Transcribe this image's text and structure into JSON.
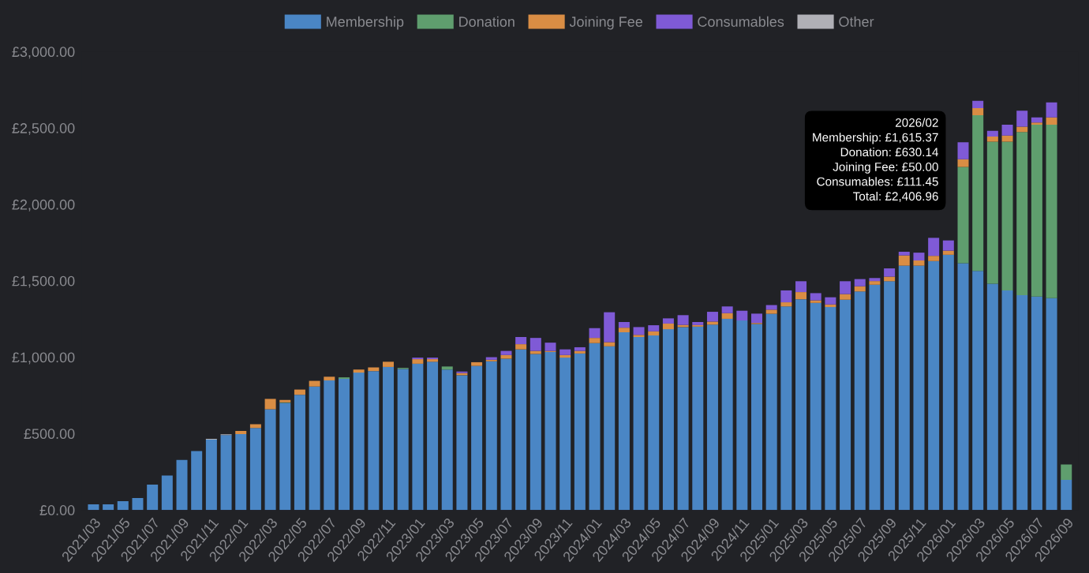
{
  "chart_data": {
    "type": "bar",
    "stacked": true,
    "categories": [
      "2021/03",
      null,
      "2021/05",
      null,
      "2021/07",
      null,
      "2021/09",
      null,
      "2021/11",
      null,
      "2022/01",
      null,
      "2022/03",
      null,
      "2022/05",
      null,
      "2022/07",
      null,
      "2022/09",
      null,
      "2022/11",
      null,
      "2023/01",
      null,
      "2023/03",
      null,
      "2023/05",
      null,
      "2023/07",
      null,
      "2023/09",
      null,
      "2023/11",
      null,
      "2024/01",
      null,
      "2024/03",
      null,
      "2024/05",
      null,
      "2024/07",
      null,
      "2024/09",
      null,
      "2024/11",
      null,
      "2025/01",
      null,
      "2025/03",
      null,
      "2025/05",
      null,
      "2025/07",
      null,
      "2025/09",
      null,
      "2025/11",
      null,
      "2026/01",
      null,
      "2026/03",
      null,
      "2026/05",
      null,
      "2026/07",
      null,
      "2026/09"
    ],
    "series": [
      {
        "name": "Membership",
        "color": "#4a86c5",
        "values": [
          37,
          37,
          57,
          78,
          166,
          226,
          328,
          385,
          460,
          490,
          497,
          537,
          659,
          700,
          754,
          808,
          848,
          858,
          899,
          909,
          936,
          923,
          957,
          970,
          919,
          882,
          943,
          973,
          990,
          1051,
          1021,
          1034,
          997,
          1024,
          1092,
          1071,
          1163,
          1132,
          1142,
          1183,
          1197,
          1200,
          1213,
          1251,
          1240,
          1217,
          1284,
          1332,
          1379,
          1355,
          1328,
          1376,
          1430,
          1474,
          1497,
          1599,
          1599,
          1629,
          1670,
          1615.37,
          1565,
          1480,
          1437,
          1406,
          1396,
          1386,
          197
        ]
      },
      {
        "name": "Donation",
        "color": "#5f9e6e",
        "values": [
          0,
          0,
          0,
          0,
          0,
          0,
          0,
          0,
          0,
          0,
          0,
          0,
          0,
          5,
          0,
          0,
          0,
          10,
          0,
          0,
          0,
          7,
          0,
          0,
          20,
          0,
          0,
          0,
          0,
          0,
          0,
          0,
          0,
          0,
          0,
          0,
          0,
          0,
          0,
          0,
          0,
          0,
          0,
          0,
          0,
          0,
          0,
          0,
          0,
          0,
          0,
          0,
          0,
          0,
          0,
          0,
          0,
          0,
          0,
          630.14,
          1018,
          930,
          973,
          1068,
          1125,
          1136,
          101
        ]
      },
      {
        "name": "Joining Fee",
        "color": "#d98d44",
        "values": [
          0,
          0,
          0,
          0,
          0,
          0,
          0,
          0,
          0,
          0,
          20,
          24,
          68,
          15,
          34,
          37,
          24,
          0,
          20,
          24,
          34,
          0,
          30,
          17,
          0,
          14,
          24,
          10,
          24,
          34,
          20,
          7,
          17,
          17,
          34,
          27,
          30,
          14,
          27,
          37,
          14,
          10,
          20,
          37,
          0,
          7,
          27,
          27,
          47,
          17,
          17,
          37,
          34,
          24,
          30,
          67,
          34,
          34,
          27,
          50.0,
          47,
          34,
          41,
          34,
          14,
          47,
          0
        ]
      },
      {
        "name": "Consumables",
        "color": "#7f5ad6",
        "values": [
          0,
          0,
          0,
          0,
          0,
          0,
          0,
          0,
          0,
          0,
          0,
          0,
          0,
          0,
          0,
          0,
          0,
          0,
          0,
          0,
          0,
          0,
          10,
          10,
          0,
          10,
          0,
          17,
          27,
          47,
          85,
          54,
          37,
          24,
          64,
          196,
          37,
          51,
          40,
          34,
          64,
          20,
          64,
          44,
          64,
          61,
          30,
          78,
          71,
          47,
          47,
          84,
          47,
          20,
          54,
          24,
          51,
          118,
          67,
          111.45,
          47,
          37,
          71,
          105,
          34,
          98,
          0
        ]
      },
      {
        "name": "Other",
        "color": "#b0b0b6",
        "values": [
          0,
          0,
          0,
          0,
          0,
          0,
          0,
          0,
          5,
          5,
          0,
          0,
          0,
          0,
          0,
          0,
          0,
          0,
          0,
          0,
          0,
          0,
          0,
          0,
          0,
          0,
          0,
          0,
          0,
          0,
          0,
          0,
          0,
          0,
          0,
          0,
          0,
          0,
          0,
          0,
          0,
          0,
          0,
          0,
          0,
          0,
          0,
          0,
          0,
          0,
          0,
          0,
          0,
          0,
          0,
          0,
          0,
          0,
          0,
          0,
          0,
          0,
          0,
          0,
          0,
          0,
          0
        ]
      }
    ],
    "ylim": [
      0,
      3000
    ],
    "yticks": [
      {
        "value": 0,
        "label": "£0.00"
      },
      {
        "value": 500,
        "label": "£500.00"
      },
      {
        "value": 1000,
        "label": "£1,000.00"
      },
      {
        "value": 1500,
        "label": "£1,500.00"
      },
      {
        "value": 2000,
        "label": "£2,000.00"
      },
      {
        "value": 2500,
        "label": "£2,500.00"
      },
      {
        "value": 3000,
        "label": "£3,000.00"
      }
    ],
    "grid": false,
    "legend": "top",
    "annotations": [
      "2026/02\nMembership: £1,615.37\nDonation: £630.14\nJoining Fee: £50.00\nConsumables: £111.45\nTotal: £2,406.96"
    ]
  }
}
